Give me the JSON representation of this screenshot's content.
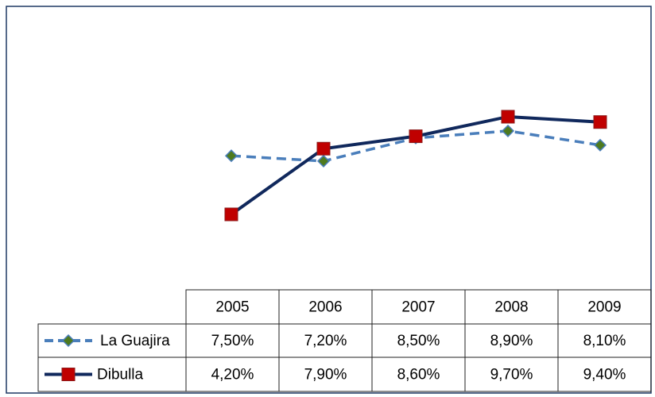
{
  "chart_data": {
    "type": "line",
    "categories": [
      "2005",
      "2006",
      "2007",
      "2008",
      "2009"
    ],
    "series": [
      {
        "name": "La Guajira",
        "color": "#4a7ebb",
        "marker_color": "#4e7a1e",
        "dash": true,
        "marker": "diamond",
        "values": [
          7.5,
          7.2,
          8.5,
          8.9,
          8.1
        ],
        "value_labels": [
          "7,50%",
          "7,20%",
          "8,50%",
          "8,90%",
          "8,10%"
        ]
      },
      {
        "name": "Dibulla",
        "color": "#10285c",
        "marker_color": "#c00000",
        "dash": false,
        "marker": "square",
        "values": [
          4.2,
          7.9,
          8.6,
          9.7,
          9.4
        ],
        "value_labels": [
          "4,20%",
          "7,90%",
          "8,60%",
          "9,70%",
          "9,40%"
        ]
      }
    ]
  }
}
